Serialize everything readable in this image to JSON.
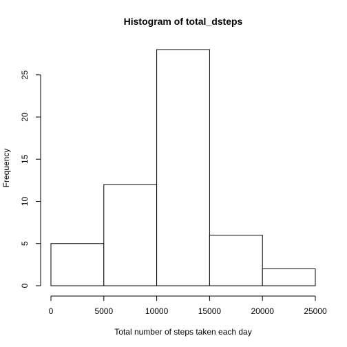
{
  "chart_data": {
    "type": "bar",
    "title": "Histogram of total_dsteps",
    "xlabel": "Total number of steps taken each day",
    "ylabel": "Frequency",
    "bins": [
      {
        "start": 0,
        "end": 5000,
        "count": 5
      },
      {
        "start": 5000,
        "end": 10000,
        "count": 12
      },
      {
        "start": 10000,
        "end": 15000,
        "count": 28
      },
      {
        "start": 15000,
        "end": 20000,
        "count": 6
      },
      {
        "start": 20000,
        "end": 25000,
        "count": 2
      }
    ],
    "x_ticks": [
      0,
      5000,
      10000,
      15000,
      20000,
      25000
    ],
    "y_ticks": [
      0,
      5,
      10,
      15,
      20,
      25
    ],
    "xlim": [
      0,
      25000
    ],
    "ylim": [
      0,
      28
    ],
    "grid": false,
    "bar_fill": "#ffffff",
    "bar_stroke": "#000000"
  }
}
